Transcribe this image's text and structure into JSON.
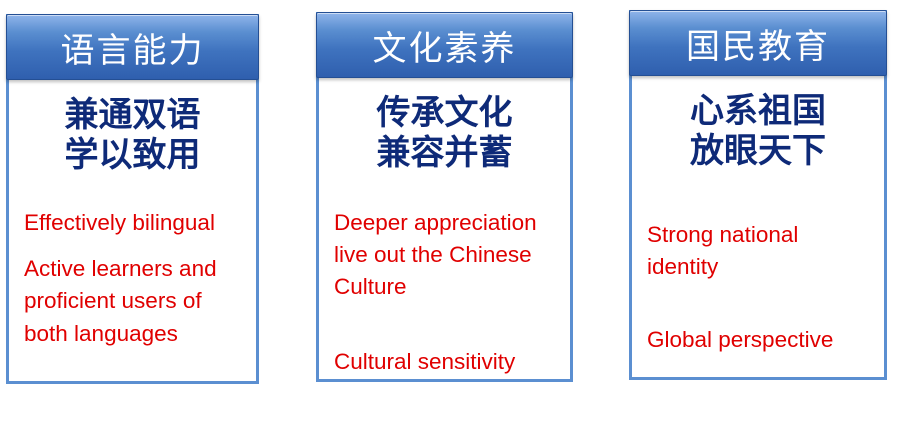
{
  "cards": [
    {
      "header": "语言能力",
      "subtitle": "兼通双语\n学以致用",
      "points": [
        "Effectively bilingual",
        "Active learners and\nproficient  users of\nboth languages"
      ]
    },
    {
      "header": "文化素养",
      "subtitle": "传承文化\n兼容并蓄",
      "points": [
        "Deeper appreciation\nlive out the Chinese\nCulture",
        "Cultural  sensitivity"
      ]
    },
    {
      "header": "国民教育",
      "subtitle": "心系祖国\n放眼天下",
      "points": [
        "Strong national\nidentity",
        "Global perspective"
      ]
    }
  ],
  "colors": {
    "header_blue": "#3f73bf",
    "border_blue": "#5b8fd1",
    "subtitle_navy": "#0e2a78",
    "body_red": "#e00000"
  }
}
